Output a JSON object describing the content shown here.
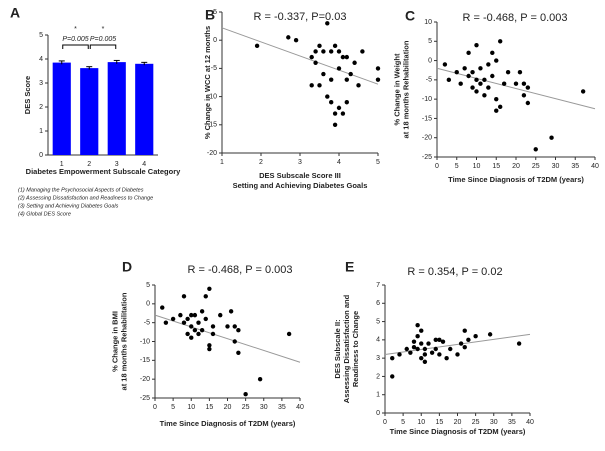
{
  "chart_data": [
    {
      "type": "bar",
      "label": "A",
      "categories": [
        "1",
        "2",
        "3",
        "4"
      ],
      "values": [
        3.85,
        3.62,
        3.87,
        3.8
      ],
      "errors": [
        0.07,
        0.06,
        0.07,
        0.06
      ],
      "color": "#0000ff",
      "ylim": [
        0,
        5
      ],
      "yticks": [
        0,
        1,
        2,
        3,
        4,
        5
      ],
      "ylabel": [
        "DES Score"
      ],
      "xlabel": [
        "Diabetes Empowerment Subscale Category"
      ],
      "comparisons": [
        {
          "star": "*",
          "label": "P=0.005"
        },
        {
          "star": "*",
          "label": "P=0.005"
        }
      ],
      "footnotes": [
        "(1) Managing the Psychosocial Aspects of Diabetes",
        "(2) Assessing Dissatisfaction and Readiness to Change",
        "(3) Setting and Achieving Diabetes Goals",
        "(4) Global DES Score"
      ]
    },
    {
      "type": "scatter",
      "label": "B",
      "title": "R = -0.337, P=0.03",
      "x": [
        1.9,
        2.7,
        2.9,
        3.3,
        3.4,
        3.5,
        3.6,
        3.7,
        3.8,
        3.9,
        3.6,
        3.5,
        3.3,
        3.7,
        3.8,
        4.0,
        4.1,
        3.9,
        4.2,
        4.0,
        4.1,
        4.2,
        4.3,
        4.4,
        4.5,
        4.2,
        3.8,
        4.0,
        3.4,
        5.0,
        5.0,
        4.6,
        3.9
      ],
      "values": [
        -1,
        0.5,
        0,
        -3,
        -2,
        -1,
        -2,
        3,
        -2,
        -1,
        -6,
        -8,
        -8,
        -10,
        -11,
        -12,
        -13,
        -15,
        -11,
        -5,
        -3,
        -7,
        -6,
        -4,
        -8,
        -3,
        -7,
        -2,
        -4,
        -5,
        -7,
        -2,
        -13
      ],
      "trend": {
        "x": [
          1,
          5
        ],
        "values": [
          2.2,
          -7.8
        ]
      },
      "xlim": [
        1,
        5
      ],
      "xticks": [
        1,
        2,
        3,
        4,
        5
      ],
      "ylim": [
        -20,
        5
      ],
      "yticks": [
        -20,
        -15,
        -10,
        -5,
        0,
        5
      ],
      "ylabel": [
        "% Change in WCC at 12 months"
      ],
      "xlabel": [
        "DES Subscale Score III",
        "Setting and Achieving Diabetes Goals"
      ]
    },
    {
      "type": "scatter",
      "label": "C",
      "title": "R = -0.468, P = 0.003",
      "x": [
        2,
        3,
        5,
        6,
        7,
        8,
        8,
        9,
        9,
        10,
        10,
        11,
        11,
        12,
        12,
        13,
        13,
        14,
        14,
        15,
        15,
        15,
        16,
        17,
        18,
        20,
        21,
        22,
        22,
        23,
        23,
        25,
        29,
        37,
        10,
        16
      ],
      "values": [
        -1,
        -5,
        -3,
        -6,
        -2,
        -4,
        2,
        -3,
        -7,
        -5,
        -8,
        -2,
        -6,
        -9,
        -5,
        -1,
        -7,
        -4,
        2,
        0,
        -10,
        -13,
        5,
        -6,
        -3,
        -6,
        -3,
        -6,
        -9,
        -11,
        -7,
        -23,
        -20,
        -8,
        4,
        -12
      ],
      "trend": {
        "x": [
          0,
          40
        ],
        "values": [
          -2,
          -12.5
        ]
      },
      "xlim": [
        0,
        40
      ],
      "xticks": [
        0,
        5,
        10,
        15,
        20,
        25,
        30,
        35,
        40
      ],
      "ylim": [
        -25,
        10
      ],
      "yticks": [
        -25,
        -20,
        -15,
        -10,
        -5,
        0,
        5,
        10
      ],
      "ylabel": [
        "% Change in Weight",
        "at 18 months Rehabilitation"
      ],
      "xlabel": [
        "Time Since Diagnosis of T2DM (years)"
      ]
    },
    {
      "type": "scatter",
      "label": "D",
      "title": "R = -0.468, P = 0.003",
      "x": [
        2,
        3,
        5,
        7,
        8,
        8,
        9,
        9,
        10,
        10,
        11,
        11,
        12,
        12,
        13,
        13,
        14,
        14,
        15,
        15,
        15,
        16,
        18,
        20,
        21,
        22,
        22,
        23,
        23,
        25,
        29,
        37,
        10,
        16
      ],
      "values": [
        -1,
        -5,
        -4,
        -3,
        -5,
        2,
        -4,
        -8,
        -6,
        -9,
        -3,
        -7,
        -8,
        -5,
        -2,
        -7,
        -4,
        2,
        4,
        -12,
        -11,
        -6,
        -3,
        -6,
        -2,
        -6,
        -10,
        -13,
        -7,
        -24,
        -20,
        -8,
        -3,
        -8
      ],
      "trend": {
        "x": [
          0,
          40
        ],
        "values": [
          -3,
          -15.5
        ]
      },
      "xlim": [
        0,
        40
      ],
      "xticks": [
        0,
        5,
        10,
        15,
        20,
        25,
        30,
        35,
        40
      ],
      "ylim": [
        -25,
        5
      ],
      "yticks": [
        -25,
        -20,
        -15,
        -10,
        -5,
        0,
        5
      ],
      "ylabel": [
        "% Change in BMI",
        "at 18 months Rehabilitation"
      ],
      "xlabel": [
        "Time Since Diagnosis of T2DM (years)"
      ]
    },
    {
      "type": "scatter",
      "label": "E",
      "title": "R = 0.354, P = 0.02",
      "x": [
        2,
        2,
        4,
        6,
        7,
        8,
        8,
        9,
        9,
        9,
        10,
        10,
        10,
        11,
        11,
        11,
        12,
        13,
        14,
        15,
        15,
        16,
        17,
        18,
        20,
        21,
        22,
        22,
        23,
        25,
        29,
        37,
        14
      ],
      "values": [
        2,
        3,
        3.2,
        3.5,
        3.3,
        3.6,
        3.9,
        4.8,
        4.2,
        3.5,
        4.5,
        3.8,
        3,
        3.2,
        2.8,
        3.5,
        3.8,
        3.3,
        3.5,
        4,
        3.2,
        3.9,
        3,
        3.5,
        3.2,
        3.8,
        4.5,
        3.6,
        4,
        4.2,
        4.3,
        3.8,
        4
      ],
      "trend": {
        "x": [
          0,
          40
        ],
        "values": [
          3.2,
          4.3
        ]
      },
      "xlim": [
        0,
        40
      ],
      "xticks": [
        0,
        5,
        10,
        15,
        20,
        25,
        30,
        35,
        40
      ],
      "ylim": [
        0,
        7
      ],
      "yticks": [
        0,
        1,
        2,
        3,
        4,
        5,
        6,
        7
      ],
      "ylabel": [
        "DES Subscale II:",
        "Assessing Dissatisfaction and",
        "Readiness to Change"
      ],
      "xlabel": [
        "Time Since Diagnosis of T2DM (years)"
      ]
    }
  ]
}
